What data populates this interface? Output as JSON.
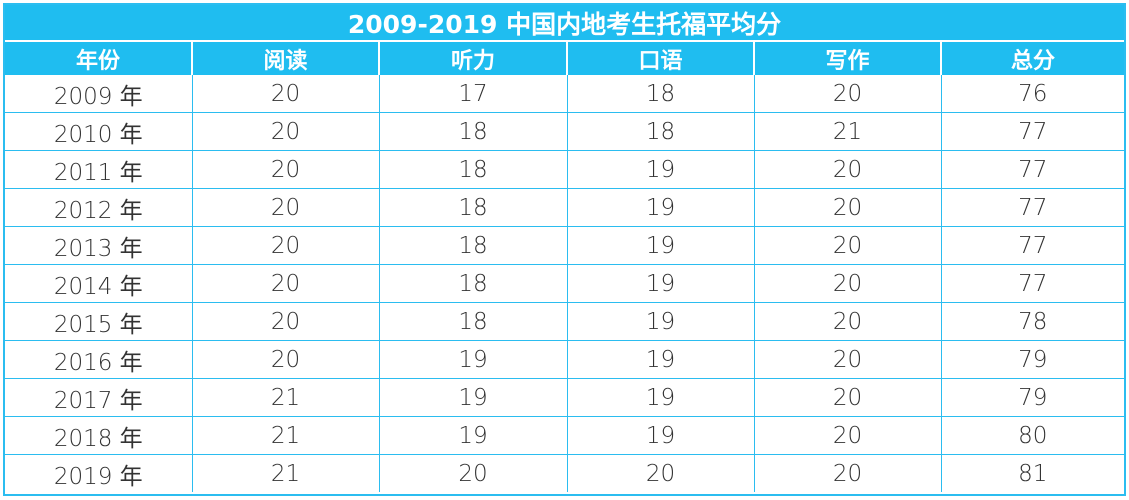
{
  "title": "2009-2019 中国内地考生托福平均分",
  "headers": [
    "年份",
    "阅读",
    "听力",
    "口语",
    "写作",
    "总分"
  ],
  "rows": [
    [
      "2009 年",
      "20",
      "17",
      "18",
      "20",
      "76"
    ],
    [
      "2010 年",
      "20",
      "18",
      "18",
      "21",
      "77"
    ],
    [
      "2011 年",
      "20",
      "18",
      "19",
      "20",
      "77"
    ],
    [
      "2012 年",
      "20",
      "18",
      "19",
      "20",
      "77"
    ],
    [
      "2013 年",
      "20",
      "18",
      "19",
      "20",
      "77"
    ],
    [
      "2014 年",
      "20",
      "18",
      "19",
      "20",
      "77"
    ],
    [
      "2015 年",
      "20",
      "18",
      "19",
      "20",
      "78"
    ],
    [
      "2016 年",
      "20",
      "19",
      "19",
      "20",
      "79"
    ],
    [
      "2017 年",
      "21",
      "19",
      "19",
      "20",
      "79"
    ],
    [
      "2018 年",
      "21",
      "19",
      "19",
      "20",
      "80"
    ],
    [
      "2019 年",
      "21",
      "20",
      "20",
      "20",
      "81"
    ]
  ],
  "colors": {
    "header_bg": "#1fbdf0",
    "grid": "#2bbdf0",
    "header_text": "#ffffff",
    "cell_text": "#333333"
  }
}
